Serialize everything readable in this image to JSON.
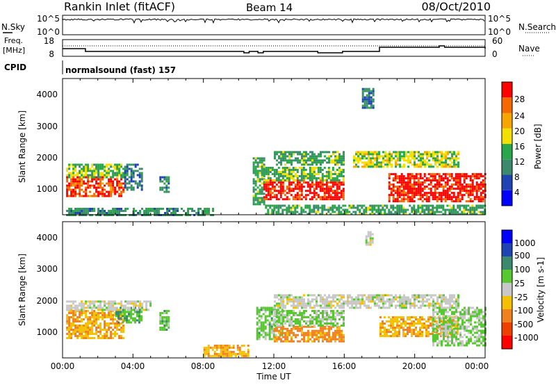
{
  "header": {
    "station": "Rankin Inlet (fitACF)",
    "beam": "Beam 14",
    "date": "08/Oct/2010"
  },
  "noise_panel": {
    "left_label": "N.Sky",
    "right_label": "N.Search",
    "tick_top": "10^5",
    "tick_bottom": "10^0"
  },
  "freq_panel": {
    "left_label_1": "Freq.",
    "left_label_2": "[MHz]",
    "left_ticks": [
      "18",
      "8"
    ],
    "right_ticks": [
      "60",
      "0"
    ],
    "right_label": "Nave"
  },
  "cpid": {
    "label": "CPID",
    "value": "normalsound (fast) 157"
  },
  "colors": {
    "power_scale": [
      "#0000ff",
      "#1e44b4",
      "#3c8a6e",
      "#2aa74a",
      "#f2e000",
      "#f7a600",
      "#f46a00",
      "#ff0000"
    ],
    "velocity_scale": [
      "#ff0000",
      "#f04000",
      "#f08020",
      "#f4c000",
      "#c8c8c8",
      "#58c830",
      "#3c8a6e",
      "#1e44b4",
      "#0000ff"
    ]
  },
  "chart_data": [
    {
      "type": "heatmap",
      "title": "",
      "xlabel": "Time UT",
      "ylabel": "Slant Range [km]",
      "x_ticks": [
        "00:00",
        "04:00",
        "08:00",
        "12:00",
        "16:00",
        "20:00",
        "00:00"
      ],
      "y_ticks": [
        "1000",
        "2000",
        "3000",
        "4000"
      ],
      "ylim": [
        180,
        4500
      ],
      "colorbar": {
        "label": "Power [dB]",
        "ticks": [
          "28",
          "24",
          "20",
          "16",
          "12",
          "8",
          "4"
        ],
        "range": [
          0,
          30
        ]
      },
      "bands": [
        {
          "t0": 0.2,
          "t1": 8.5,
          "r0": 200,
          "r1": 400,
          "value": 10
        },
        {
          "t0": 0.2,
          "t1": 3.5,
          "r0": 800,
          "r1": 1400,
          "value": 26
        },
        {
          "t0": 0.2,
          "t1": 3.5,
          "r0": 1400,
          "r1": 1800,
          "value": 14
        },
        {
          "t0": 3.5,
          "t1": 4.5,
          "r0": 1000,
          "r1": 1800,
          "value": 8
        },
        {
          "t0": 5.5,
          "t1": 6.0,
          "r0": 900,
          "r1": 1400,
          "value": 10
        },
        {
          "t0": 10.8,
          "t1": 11.4,
          "r0": 500,
          "r1": 2000,
          "value": 12
        },
        {
          "t0": 11.4,
          "t1": 16.0,
          "r0": 700,
          "r1": 1300,
          "value": 28
        },
        {
          "t0": 11.4,
          "t1": 16.0,
          "r0": 1300,
          "r1": 1700,
          "value": 14
        },
        {
          "t0": 12.0,
          "t1": 16.0,
          "r0": 1800,
          "r1": 2200,
          "value": 12
        },
        {
          "t0": 16.5,
          "t1": 22.5,
          "r0": 1700,
          "r1": 2200,
          "value": 16
        },
        {
          "t0": 18.5,
          "t1": 24.0,
          "r0": 600,
          "r1": 1500,
          "value": 28
        },
        {
          "t0": 17.0,
          "t1": 17.6,
          "r0": 3600,
          "r1": 4200,
          "value": 8
        },
        {
          "t0": 11.5,
          "t1": 24.0,
          "r0": 200,
          "r1": 500,
          "value": 12
        }
      ]
    },
    {
      "type": "heatmap",
      "title": "",
      "xlabel": "Time UT",
      "ylabel": "Slant Range [km]",
      "x_ticks": [
        "00:00",
        "04:00",
        "08:00",
        "12:00",
        "16:00",
        "20:00",
        "00:00"
      ],
      "y_ticks": [
        "1000",
        "2000",
        "3000",
        "4000"
      ],
      "ylim": [
        180,
        4500
      ],
      "colorbar": {
        "label": "Velocity [m s-1]",
        "ticks": [
          "1000",
          "500",
          "100",
          "25",
          "-25",
          "-100",
          "-500",
          "-1000"
        ],
        "range": [
          -1000,
          1000
        ]
      },
      "bands": [
        {
          "t0": 0.2,
          "t1": 3.5,
          "r0": 800,
          "r1": 1700,
          "value": -300
        },
        {
          "t0": 3.0,
          "t1": 4.5,
          "r0": 1300,
          "r1": 1800,
          "value": 300
        },
        {
          "t0": 0.2,
          "t1": 5.0,
          "r0": 1700,
          "r1": 2000,
          "value": 0
        },
        {
          "t0": 5.5,
          "t1": 6.0,
          "r0": 1100,
          "r1": 1700,
          "value": 200
        },
        {
          "t0": 8.0,
          "t1": 10.5,
          "r0": 250,
          "r1": 600,
          "value": -300
        },
        {
          "t0": 11.0,
          "t1": 12.5,
          "r0": 800,
          "r1": 1800,
          "value": 200
        },
        {
          "t0": 12.0,
          "t1": 16.0,
          "r0": 700,
          "r1": 1200,
          "value": -400
        },
        {
          "t0": 12.0,
          "t1": 16.0,
          "r0": 1200,
          "r1": 1700,
          "value": 150
        },
        {
          "t0": 12.0,
          "t1": 22.5,
          "r0": 1800,
          "r1": 2200,
          "value": 0
        },
        {
          "t0": 18.0,
          "t1": 22.5,
          "r0": 900,
          "r1": 1500,
          "value": -300
        },
        {
          "t0": 21.0,
          "t1": 24.0,
          "r0": 600,
          "r1": 1800,
          "value": 150
        },
        {
          "t0": 17.2,
          "t1": 17.6,
          "r0": 3800,
          "r1": 4200,
          "value": 0
        }
      ]
    }
  ]
}
